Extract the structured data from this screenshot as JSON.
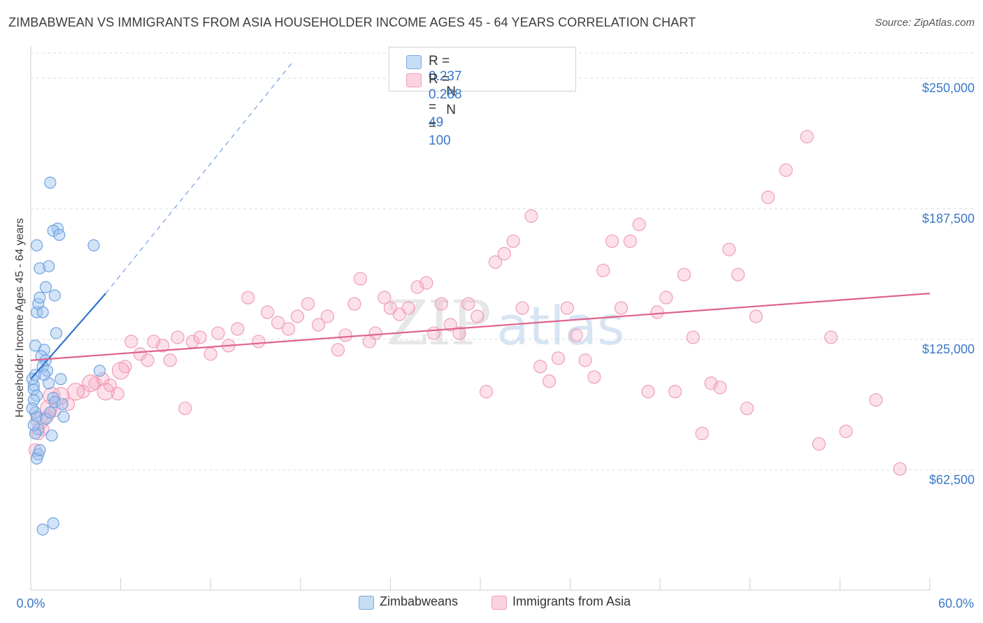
{
  "title": "ZIMBABWEAN VS IMMIGRANTS FROM ASIA HOUSEHOLDER INCOME AGES 45 - 64 YEARS CORRELATION CHART",
  "source": "Source: ZipAtlas.com",
  "legend": {
    "rows": [
      {
        "r_label": "R = ",
        "r_value": "0.237",
        "n_label": "N = ",
        "n_value": "49",
        "color": "#a8c8f0"
      },
      {
        "r_label": "R = ",
        "r_value": "0.288",
        "n_label": "N = ",
        "n_value": "100",
        "color": "#f5b8cb"
      }
    ]
  },
  "bottom_legend": [
    "Zimbabweans",
    "Immigrants from Asia"
  ],
  "watermark": {
    "zip": "ZIP",
    "atlas": "atlas"
  },
  "chart_data": {
    "type": "scatter",
    "ylabel": "Householder Income Ages 45 - 64 years",
    "xlim": [
      0,
      60
    ],
    "ylim": [
      5000,
      262000
    ],
    "x_tick_labels": [
      "0.0%",
      "60.0%"
    ],
    "y_ticks": [
      62500,
      125000,
      187500,
      250000
    ],
    "y_tick_labels": [
      "$62,500",
      "$125,000",
      "$187,500",
      "$250,000"
    ],
    "grid": true,
    "colors": {
      "zimbabweans": "#6fa3e0",
      "asia": "#ef8fb0",
      "zim_line": "#2f72d0",
      "asia_line": "#e0628a",
      "tick_text": "#3a78c8"
    },
    "series": [
      {
        "name": "Zimbabweans",
        "points": [
          [
            0.2,
            103000
          ],
          [
            0.3,
            108000
          ],
          [
            0.2,
            101000
          ],
          [
            0.4,
            98000
          ],
          [
            0.2,
            96000
          ],
          [
            0.3,
            90000
          ],
          [
            0.4,
            88000
          ],
          [
            0.5,
            82000
          ],
          [
            0.3,
            80000
          ],
          [
            0.5,
            70000
          ],
          [
            0.4,
            68000
          ],
          [
            0.6,
            72000
          ],
          [
            0.3,
            122000
          ],
          [
            0.4,
            138000
          ],
          [
            0.5,
            142000
          ],
          [
            0.4,
            170000
          ],
          [
            0.6,
            159000
          ],
          [
            0.6,
            145000
          ],
          [
            0.8,
            138000
          ],
          [
            0.9,
            120000
          ],
          [
            0.7,
            117000
          ],
          [
            1.0,
            115000
          ],
          [
            0.8,
            112000
          ],
          [
            1.1,
            110000
          ],
          [
            0.9,
            108000
          ],
          [
            1.2,
            104000
          ],
          [
            1.0,
            87000
          ],
          [
            1.4,
            79000
          ],
          [
            1.5,
            97000
          ],
          [
            1.6,
            95000
          ],
          [
            1.3,
            90000
          ],
          [
            1.0,
            150000
          ],
          [
            1.2,
            160000
          ],
          [
            1.6,
            146000
          ],
          [
            1.7,
            128000
          ],
          [
            1.8,
            178000
          ],
          [
            1.5,
            177000
          ],
          [
            1.9,
            175000
          ],
          [
            2.0,
            106000
          ],
          [
            2.1,
            94000
          ],
          [
            2.2,
            88000
          ],
          [
            1.3,
            200000
          ],
          [
            4.2,
            170000
          ],
          [
            4.6,
            110000
          ],
          [
            1.5,
            37000
          ],
          [
            0.8,
            34000
          ],
          [
            0.1,
            106000
          ],
          [
            0.1,
            92000
          ],
          [
            0.2,
            84000
          ]
        ]
      },
      {
        "name": "Immigrants from Asia",
        "points": [
          [
            0.3,
            72000
          ],
          [
            0.5,
            80000
          ],
          [
            0.8,
            82000
          ],
          [
            1.1,
            88000
          ],
          [
            1.6,
            91000
          ],
          [
            2.5,
            94000
          ],
          [
            3.5,
            100000
          ],
          [
            4.3,
            104000
          ],
          [
            4.8,
            106000
          ],
          [
            5.3,
            103000
          ],
          [
            5.8,
            99000
          ],
          [
            6.3,
            112000
          ],
          [
            6.7,
            124000
          ],
          [
            7.3,
            118000
          ],
          [
            7.8,
            115000
          ],
          [
            8.2,
            124000
          ],
          [
            8.8,
            122000
          ],
          [
            9.3,
            115000
          ],
          [
            9.8,
            126000
          ],
          [
            10.3,
            92000
          ],
          [
            10.8,
            124000
          ],
          [
            11.3,
            126000
          ],
          [
            12.0,
            118000
          ],
          [
            12.5,
            128000
          ],
          [
            13.2,
            122000
          ],
          [
            13.8,
            130000
          ],
          [
            14.5,
            145000
          ],
          [
            15.2,
            124000
          ],
          [
            15.8,
            138000
          ],
          [
            16.5,
            133000
          ],
          [
            17.2,
            130000
          ],
          [
            17.8,
            136000
          ],
          [
            18.5,
            142000
          ],
          [
            19.2,
            132000
          ],
          [
            19.8,
            136000
          ],
          [
            20.5,
            120000
          ],
          [
            21.0,
            127000
          ],
          [
            21.6,
            142000
          ],
          [
            22.0,
            154000
          ],
          [
            22.6,
            124000
          ],
          [
            23.0,
            128000
          ],
          [
            23.6,
            145000
          ],
          [
            24.0,
            140000
          ],
          [
            24.6,
            137000
          ],
          [
            25.2,
            140000
          ],
          [
            25.8,
            150000
          ],
          [
            26.4,
            152000
          ],
          [
            26.9,
            128000
          ],
          [
            27.4,
            142000
          ],
          [
            28.0,
            132000
          ],
          [
            28.6,
            128000
          ],
          [
            29.2,
            142000
          ],
          [
            29.8,
            136000
          ],
          [
            30.4,
            100000
          ],
          [
            31.0,
            162000
          ],
          [
            31.6,
            166000
          ],
          [
            32.2,
            172000
          ],
          [
            32.8,
            140000
          ],
          [
            33.4,
            184000
          ],
          [
            34.0,
            112000
          ],
          [
            34.6,
            105000
          ],
          [
            35.2,
            116000
          ],
          [
            35.8,
            140000
          ],
          [
            36.4,
            127000
          ],
          [
            37.0,
            115000
          ],
          [
            37.6,
            107000
          ],
          [
            38.2,
            158000
          ],
          [
            38.8,
            172000
          ],
          [
            39.4,
            140000
          ],
          [
            40.0,
            172000
          ],
          [
            40.6,
            180000
          ],
          [
            41.2,
            100000
          ],
          [
            41.8,
            138000
          ],
          [
            42.4,
            145000
          ],
          [
            43.0,
            100000
          ],
          [
            43.6,
            156000
          ],
          [
            44.2,
            126000
          ],
          [
            44.8,
            80000
          ],
          [
            45.4,
            104000
          ],
          [
            46.0,
            102000
          ],
          [
            46.6,
            168000
          ],
          [
            47.2,
            156000
          ],
          [
            47.8,
            92000
          ],
          [
            48.4,
            136000
          ],
          [
            49.2,
            193000
          ],
          [
            50.4,
            206000
          ],
          [
            51.8,
            222000
          ],
          [
            52.6,
            75000
          ],
          [
            53.4,
            126000
          ],
          [
            54.4,
            81000
          ],
          [
            56.4,
            96000
          ],
          [
            58.0,
            63000
          ],
          [
            1.4,
            98000
          ],
          [
            2.0,
            98000
          ],
          [
            0.6,
            86000
          ],
          [
            1.2,
            92000
          ],
          [
            3.0,
            100000
          ],
          [
            4.0,
            104000
          ],
          [
            5.0,
            100000
          ],
          [
            6.0,
            110000
          ]
        ]
      }
    ],
    "trend_lines": [
      {
        "series": "Zimbabweans",
        "from": [
          0,
          106000
        ],
        "to": [
          5.0,
          147000
        ],
        "dashed_to": [
          17.4,
          257000
        ]
      },
      {
        "series": "Immigrants from Asia",
        "from": [
          0,
          115000
        ],
        "to": [
          60,
          147000
        ]
      }
    ]
  }
}
